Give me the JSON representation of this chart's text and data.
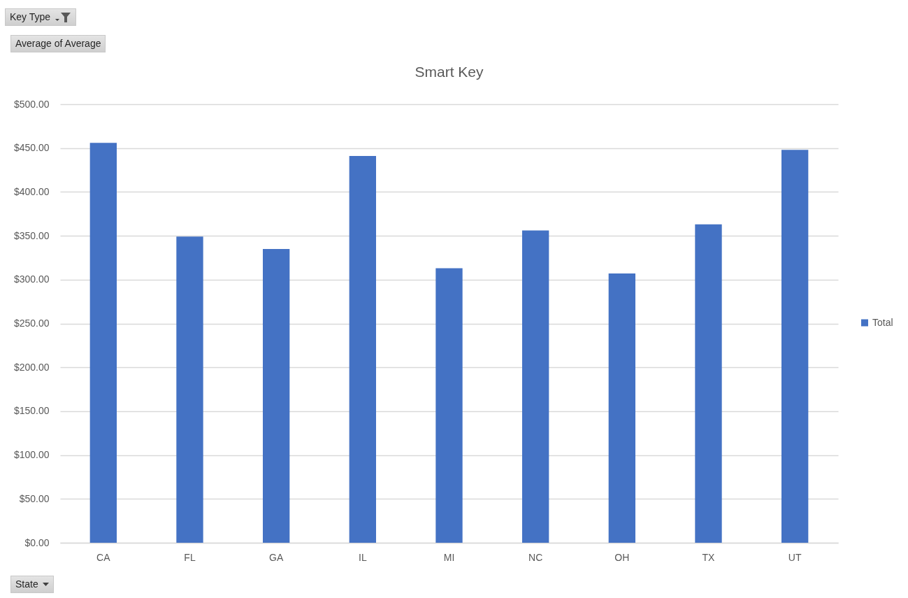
{
  "chart_data": {
    "type": "bar",
    "title": "Smart Key",
    "categories": [
      "CA",
      "FL",
      "GA",
      "IL",
      "MI",
      "NC",
      "OH",
      "TX",
      "UT"
    ],
    "series": [
      {
        "name": "Total",
        "color": "#4472c4",
        "values": [
          456,
          349,
          335,
          441,
          313,
          356,
          307,
          363,
          448
        ]
      }
    ],
    "ylim": [
      0,
      500
    ],
    "yticks": [
      {
        "value": 0,
        "label": "$0.00"
      },
      {
        "value": 50,
        "label": "$50.00"
      },
      {
        "value": 100,
        "label": "$100.00"
      },
      {
        "value": 150,
        "label": "$150.00"
      },
      {
        "value": 200,
        "label": "$200.00"
      },
      {
        "value": 250,
        "label": "$250.00"
      },
      {
        "value": 300,
        "label": "$300.00"
      },
      {
        "value": 350,
        "label": "$350.00"
      },
      {
        "value": 400,
        "label": "$400.00"
      },
      {
        "value": 450,
        "label": "$450.00"
      },
      {
        "value": 500,
        "label": "$500.00"
      }
    ],
    "grid": "y",
    "legend": "right",
    "annotations": [
      "Key Type",
      "Average of Average",
      "State"
    ]
  }
}
